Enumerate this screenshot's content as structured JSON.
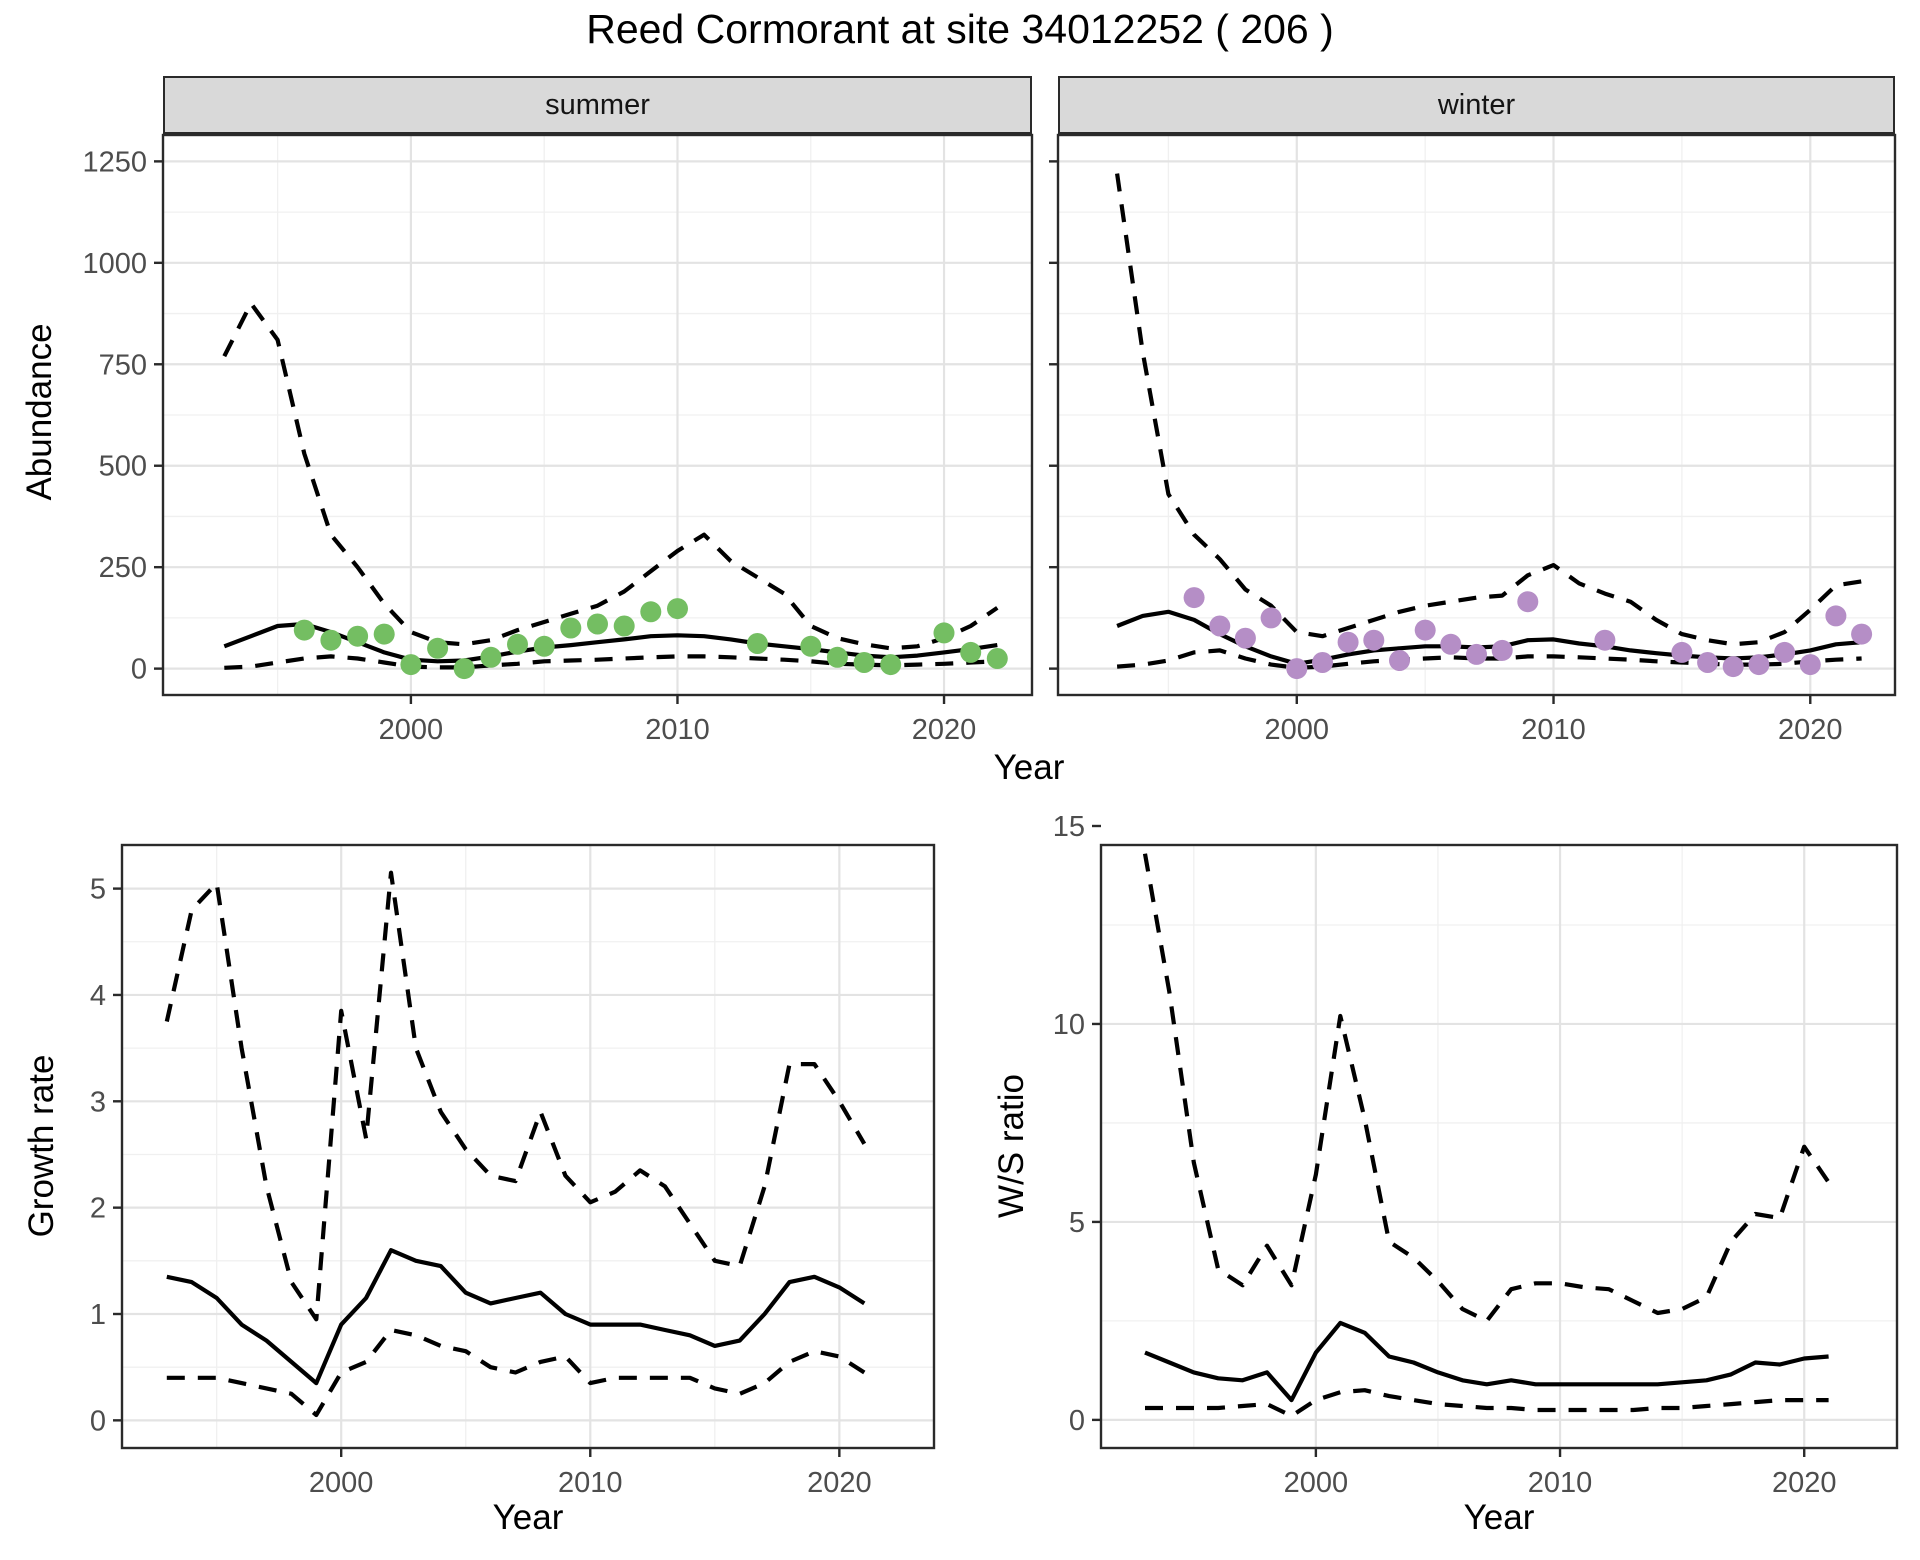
{
  "title": "Reed Cormorant at site 34012252 ( 206 )",
  "facets": {
    "summer": "summer",
    "winter": "winter"
  },
  "axes": {
    "year_label": "Year",
    "abundance_label": "Abundance",
    "growth_label": "Growth rate",
    "ws_label": "W/S ratio"
  },
  "colors": {
    "summer_points": "#74be62",
    "winter_points": "#b58ec6",
    "line": "#000000",
    "strip_fill": "#d9d9d9",
    "panel_border": "#2a2a2a",
    "grid_major": "#e3e3e3",
    "grid_minor": "#f0f0f0",
    "tick_text": "#4d4d4d"
  },
  "chart_data": [
    {
      "id": "abundance_summer",
      "type": "line",
      "facet": "summer",
      "xlabel": "Year",
      "ylabel": "Abundance",
      "xlim": [
        1990.7,
        2023.3
      ],
      "ylim": [
        -65,
        1315
      ],
      "xticks": [
        2000,
        2010,
        2020
      ],
      "yticks": [
        0,
        250,
        500,
        750,
        1000,
        1250
      ],
      "grid": true,
      "legend": "none",
      "x": [
        1993,
        1994,
        1995,
        1996,
        1997,
        1998,
        1999,
        2000,
        2001,
        2002,
        2003,
        2004,
        2005,
        2006,
        2007,
        2008,
        2009,
        2010,
        2011,
        2012,
        2013,
        2014,
        2015,
        2016,
        2017,
        2018,
        2019,
        2020,
        2021,
        2022
      ],
      "series": [
        {
          "name": "median",
          "style": "solid",
          "values": [
            55,
            80,
            105,
            110,
            90,
            65,
            40,
            22,
            18,
            20,
            30,
            42,
            52,
            58,
            65,
            72,
            80,
            82,
            80,
            72,
            62,
            55,
            48,
            40,
            32,
            28,
            32,
            40,
            48,
            58
          ]
        },
        {
          "name": "upper_ci",
          "style": "dashed",
          "values": [
            770,
            900,
            810,
            530,
            330,
            250,
            160,
            90,
            65,
            60,
            70,
            95,
            115,
            135,
            155,
            190,
            240,
            290,
            330,
            265,
            225,
            185,
            105,
            75,
            60,
            50,
            55,
            75,
            105,
            150
          ]
        },
        {
          "name": "lower_ci",
          "style": "dashed",
          "values": [
            2,
            5,
            15,
            25,
            30,
            25,
            15,
            5,
            3,
            3,
            8,
            12,
            18,
            20,
            22,
            25,
            28,
            30,
            30,
            28,
            25,
            22,
            18,
            12,
            10,
            8,
            10,
            12,
            15,
            18
          ]
        }
      ],
      "points": {
        "name": "observed-count",
        "color": "#74be62",
        "x": [
          1996,
          1997,
          1998,
          1999,
          2000,
          2001,
          2002,
          2003,
          2004,
          2005,
          2006,
          2007,
          2008,
          2009,
          2010,
          2013,
          2015,
          2016,
          2017,
          2018,
          2020,
          2021,
          2022
        ],
        "y": [
          95,
          70,
          80,
          85,
          10,
          50,
          0,
          28,
          60,
          55,
          100,
          110,
          105,
          140,
          148,
          62,
          55,
          28,
          15,
          10,
          88,
          40,
          25
        ]
      }
    },
    {
      "id": "abundance_winter",
      "type": "line",
      "facet": "winter",
      "xlabel": "Year",
      "ylabel": "Abundance",
      "xlim": [
        1990.7,
        2023.3
      ],
      "ylim": [
        -65,
        1315
      ],
      "xticks": [
        2000,
        2010,
        2020
      ],
      "yticks": [
        0,
        250,
        500,
        750,
        1000,
        1250
      ],
      "grid": true,
      "legend": "none",
      "x": [
        1993,
        1994,
        1995,
        1996,
        1997,
        1998,
        1999,
        2000,
        2001,
        2002,
        2003,
        2004,
        2005,
        2006,
        2007,
        2008,
        2009,
        2010,
        2011,
        2012,
        2013,
        2014,
        2015,
        2016,
        2017,
        2018,
        2019,
        2020,
        2021,
        2022
      ],
      "series": [
        {
          "name": "median",
          "style": "solid",
          "values": [
            105,
            130,
            140,
            120,
            85,
            55,
            30,
            12,
            22,
            35,
            45,
            50,
            55,
            55,
            52,
            55,
            70,
            72,
            62,
            55,
            45,
            38,
            32,
            28,
            25,
            28,
            35,
            45,
            60,
            65
          ]
        },
        {
          "name": "upper_ci",
          "style": "dashed",
          "values": [
            1220,
            780,
            430,
            330,
            270,
            195,
            155,
            90,
            80,
            100,
            120,
            140,
            155,
            165,
            175,
            180,
            230,
            255,
            210,
            185,
            165,
            120,
            85,
            70,
            60,
            65,
            90,
            145,
            205,
            215
          ]
        },
        {
          "name": "lower_ci",
          "style": "dashed",
          "values": [
            5,
            10,
            20,
            40,
            45,
            25,
            10,
            2,
            5,
            12,
            18,
            22,
            25,
            28,
            25,
            25,
            30,
            30,
            28,
            25,
            22,
            18,
            15,
            12,
            10,
            10,
            12,
            18,
            22,
            25
          ]
        }
      ],
      "points": {
        "name": "observed-count",
        "color": "#b58ec6",
        "x": [
          1996,
          1997,
          1998,
          1999,
          2000,
          2001,
          2002,
          2003,
          2004,
          2005,
          2006,
          2007,
          2008,
          2009,
          2012,
          2015,
          2016,
          2017,
          2018,
          2019,
          2020,
          2021,
          2022
        ],
        "y": [
          175,
          105,
          75,
          125,
          0,
          15,
          65,
          70,
          20,
          95,
          60,
          35,
          45,
          165,
          70,
          40,
          15,
          5,
          10,
          40,
          10,
          130,
          85
        ]
      }
    },
    {
      "id": "growth_rate",
      "type": "line",
      "facet": null,
      "xlabel": "Year",
      "ylabel": "Growth rate",
      "xlim": [
        1991.2,
        2023.8
      ],
      "ylim": [
        -0.26,
        5.41
      ],
      "xticks": [
        2000,
        2010,
        2020
      ],
      "yticks": [
        0,
        1,
        2,
        3,
        4,
        5
      ],
      "grid": true,
      "legend": "none",
      "x": [
        1993,
        1994,
        1995,
        1996,
        1997,
        1998,
        1999,
        2000,
        2001,
        2002,
        2003,
        2004,
        2005,
        2006,
        2007,
        2008,
        2009,
        2010,
        2011,
        2012,
        2013,
        2014,
        2015,
        2016,
        2017,
        2018,
        2019,
        2020,
        2021
      ],
      "series": [
        {
          "name": "median",
          "style": "solid",
          "values": [
            1.35,
            1.3,
            1.15,
            0.9,
            0.75,
            0.55,
            0.35,
            0.9,
            1.15,
            1.6,
            1.5,
            1.45,
            1.2,
            1.1,
            1.15,
            1.2,
            1.0,
            0.9,
            0.9,
            0.9,
            0.85,
            0.8,
            0.7,
            0.75,
            1.0,
            1.3,
            1.35,
            1.25,
            1.1
          ]
        },
        {
          "name": "upper_ci",
          "style": "dashed",
          "values": [
            3.75,
            4.8,
            5.05,
            3.5,
            2.2,
            1.3,
            0.95,
            3.85,
            2.65,
            5.15,
            3.5,
            2.9,
            2.55,
            2.3,
            2.25,
            2.9,
            2.3,
            2.05,
            2.15,
            2.35,
            2.2,
            1.85,
            1.5,
            1.45,
            2.2,
            3.35,
            3.35,
            3.0,
            2.6
          ]
        },
        {
          "name": "lower_ci",
          "style": "dashed",
          "values": [
            0.4,
            0.4,
            0.4,
            0.35,
            0.3,
            0.25,
            0.05,
            0.45,
            0.55,
            0.85,
            0.8,
            0.7,
            0.65,
            0.5,
            0.45,
            0.55,
            0.6,
            0.35,
            0.4,
            0.4,
            0.4,
            0.4,
            0.3,
            0.25,
            0.35,
            0.55,
            0.65,
            0.6,
            0.45
          ]
        }
      ],
      "points": null
    },
    {
      "id": "ws_ratio",
      "type": "line",
      "facet": null,
      "xlabel": "Year",
      "ylabel": "W/S ratio",
      "xlim": [
        1991.2,
        2023.8
      ],
      "ylim": [
        -0.71,
        14.52
      ],
      "xticks": [
        2000,
        2010,
        2020
      ],
      "yticks": [
        0,
        5,
        10,
        15
      ],
      "grid": true,
      "legend": "none",
      "x": [
        1993,
        1994,
        1995,
        1996,
        1997,
        1998,
        1999,
        2000,
        2001,
        2002,
        2003,
        2004,
        2005,
        2006,
        2007,
        2008,
        2009,
        2010,
        2011,
        2012,
        2013,
        2014,
        2015,
        2016,
        2017,
        2018,
        2019,
        2020,
        2021
      ],
      "series": [
        {
          "name": "median",
          "style": "solid",
          "values": [
            1.7,
            1.45,
            1.2,
            1.05,
            1.0,
            1.2,
            0.5,
            1.7,
            2.45,
            2.2,
            1.6,
            1.45,
            1.2,
            1.0,
            0.9,
            1.0,
            0.9,
            0.9,
            0.9,
            0.9,
            0.9,
            0.9,
            0.95,
            1.0,
            1.15,
            1.45,
            1.4,
            1.55,
            1.6
          ]
        },
        {
          "name": "upper_ci",
          "style": "dashed",
          "values": [
            14.3,
            10.8,
            6.5,
            3.8,
            3.4,
            4.4,
            3.4,
            6.2,
            10.2,
            7.6,
            4.5,
            4.1,
            3.5,
            2.8,
            2.5,
            3.3,
            3.45,
            3.45,
            3.35,
            3.3,
            3.0,
            2.7,
            2.8,
            3.1,
            4.5,
            5.2,
            5.1,
            6.9,
            6.0
          ]
        },
        {
          "name": "lower_ci",
          "style": "dashed",
          "values": [
            0.3,
            0.3,
            0.3,
            0.3,
            0.35,
            0.4,
            0.1,
            0.5,
            0.7,
            0.75,
            0.6,
            0.5,
            0.4,
            0.35,
            0.3,
            0.3,
            0.25,
            0.25,
            0.25,
            0.25,
            0.25,
            0.3,
            0.3,
            0.35,
            0.4,
            0.45,
            0.5,
            0.5,
            0.5
          ]
        }
      ],
      "points": null
    }
  ]
}
